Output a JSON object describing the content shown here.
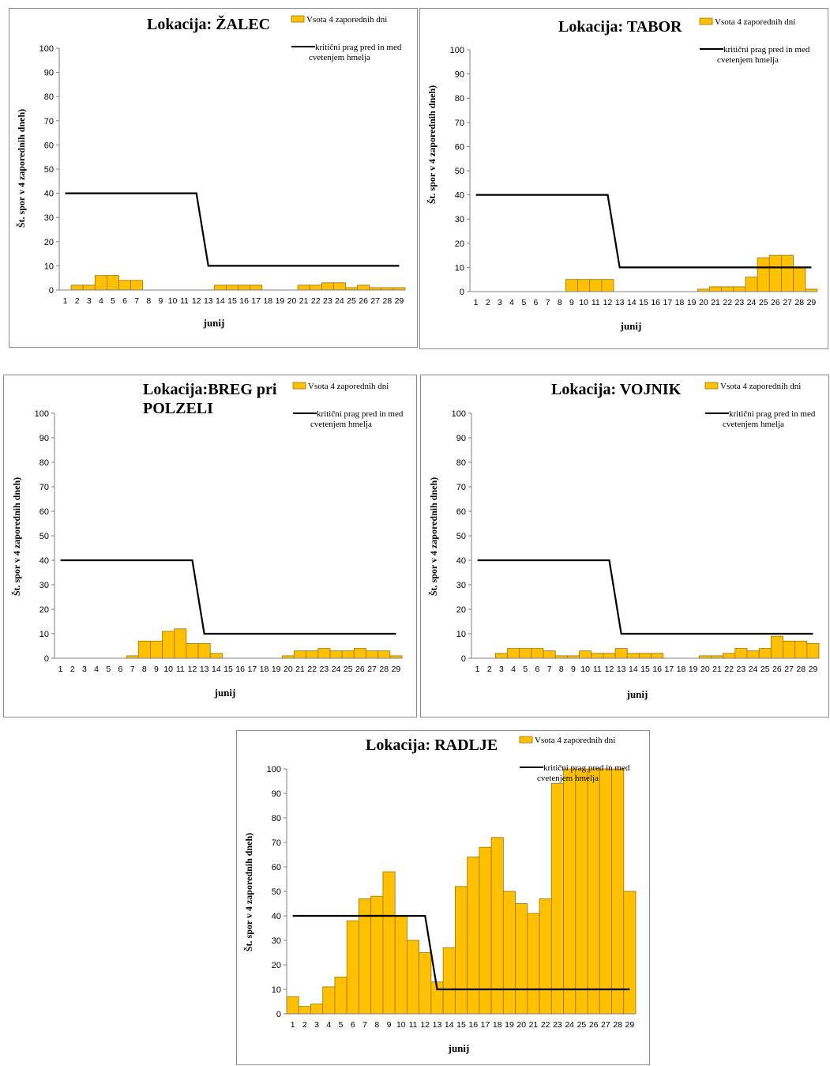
{
  "chart_data": [
    {
      "id": "zalec",
      "type": "bar",
      "title": "Lokacija: ŽALEC",
      "title_lines": [
        "Lokacija: ŽALEC"
      ],
      "xlabel": "junij",
      "ylabel": "Št. spor v 4 zaporednih dneh)",
      "ylim": [
        0,
        100
      ],
      "yticks": [
        0,
        10,
        20,
        30,
        40,
        50,
        60,
        70,
        80,
        90,
        100
      ],
      "categories": [
        "1",
        "2",
        "3",
        "4",
        "5",
        "6",
        "7",
        "8",
        "9",
        "10",
        "11",
        "12",
        "13",
        "14",
        "15",
        "16",
        "17",
        "18",
        "19",
        "20",
        "21",
        "22",
        "23",
        "24",
        "25",
        "26",
        "27",
        "28",
        "29"
      ],
      "legend": {
        "bar": "Vsota 4 zaporednih dni",
        "line": [
          "kritični prag pred in med",
          "cvetenjem  hmelja"
        ]
      },
      "series": [
        {
          "name": "Vsota 4 zaporednih dni",
          "kind": "bar",
          "color": "#FFC000",
          "values": [
            0,
            2,
            2,
            6,
            6,
            4,
            4,
            0,
            0,
            0,
            0,
            0,
            0,
            2,
            2,
            2,
            2,
            0,
            0,
            0,
            2,
            2,
            3,
            3,
            1,
            2,
            1,
            1,
            1
          ]
        },
        {
          "name": "kritični prag pred in med cvetenjem  hmelja",
          "kind": "line",
          "color": "#000000",
          "values": [
            40,
            40,
            40,
            40,
            40,
            40,
            40,
            40,
            40,
            40,
            40,
            40,
            10,
            10,
            10,
            10,
            10,
            10,
            10,
            10,
            10,
            10,
            10,
            10,
            10,
            10,
            10,
            10,
            10
          ]
        }
      ]
    },
    {
      "id": "tabor",
      "type": "bar",
      "title": "Lokacija: TABOR",
      "title_lines": [
        "Lokacija: TABOR"
      ],
      "xlabel": "junij",
      "ylabel": "Št. spor v 4 zaporednih dneh)",
      "ylim": [
        0,
        100
      ],
      "yticks": [
        0,
        10,
        20,
        30,
        40,
        50,
        60,
        70,
        80,
        90,
        100
      ],
      "categories": [
        "1",
        "2",
        "3",
        "4",
        "5",
        "6",
        "7",
        "8",
        "9",
        "10",
        "11",
        "12",
        "13",
        "14",
        "15",
        "16",
        "17",
        "18",
        "19",
        "20",
        "21",
        "22",
        "23",
        "24",
        "25",
        "26",
        "27",
        "28",
        "29"
      ],
      "legend": {
        "bar": "Vsota 4 zaporednih dni",
        "line": [
          "kritični prag pred in med",
          "cvetenjem  hmelja"
        ]
      },
      "series": [
        {
          "name": "Vsota 4 zaporednih dni",
          "kind": "bar",
          "color": "#FFC000",
          "values": [
            0,
            0,
            0,
            0,
            0,
            0,
            0,
            0,
            5,
            5,
            5,
            5,
            0,
            0,
            0,
            0,
            0,
            0,
            0,
            1,
            2,
            2,
            2,
            6,
            14,
            15,
            15,
            10,
            1
          ]
        },
        {
          "name": "kritični prag pred in med cvetenjem  hmelja",
          "kind": "line",
          "color": "#000000",
          "values": [
            40,
            40,
            40,
            40,
            40,
            40,
            40,
            40,
            40,
            40,
            40,
            40,
            10,
            10,
            10,
            10,
            10,
            10,
            10,
            10,
            10,
            10,
            10,
            10,
            10,
            10,
            10,
            10,
            10
          ]
        }
      ]
    },
    {
      "id": "breg",
      "type": "bar",
      "title": "Lokacija:BREG pri POLZELI",
      "title_lines": [
        "Lokacija:BREG pri",
        "POLZELI"
      ],
      "xlabel": "junij",
      "ylabel": "Št. spor v 4 zaporednih dneh)",
      "ylim": [
        0,
        100
      ],
      "yticks": [
        0,
        10,
        20,
        30,
        40,
        50,
        60,
        70,
        80,
        90,
        100
      ],
      "categories": [
        "1",
        "2",
        "3",
        "4",
        "5",
        "6",
        "7",
        "8",
        "9",
        "10",
        "11",
        "12",
        "13",
        "14",
        "15",
        "16",
        "17",
        "18",
        "19",
        "20",
        "21",
        "22",
        "23",
        "24",
        "25",
        "26",
        "27",
        "28",
        "29"
      ],
      "legend": {
        "bar": "Vsota 4 zaporednih dni",
        "line": [
          "kritični prag pred in med",
          "cvetenjem  hmelja"
        ]
      },
      "series": [
        {
          "name": "Vsota 4 zaporednih dni",
          "kind": "bar",
          "color": "#FFC000",
          "values": [
            0,
            0,
            0,
            0,
            0,
            0,
            1,
            7,
            7,
            11,
            12,
            6,
            6,
            2,
            0,
            0,
            0,
            0,
            0,
            1,
            3,
            3,
            4,
            3,
            3,
            4,
            3,
            3,
            1
          ]
        },
        {
          "name": "kritični prag pred in med cvetenjem  hmelja",
          "kind": "line",
          "color": "#000000",
          "values": [
            40,
            40,
            40,
            40,
            40,
            40,
            40,
            40,
            40,
            40,
            40,
            40,
            10,
            10,
            10,
            10,
            10,
            10,
            10,
            10,
            10,
            10,
            10,
            10,
            10,
            10,
            10,
            10,
            10
          ]
        }
      ]
    },
    {
      "id": "vojnik",
      "type": "bar",
      "title": "Lokacija: VOJNIK",
      "title_lines": [
        "Lokacija: VOJNIK"
      ],
      "xlabel": "junij",
      "ylabel": "Št. spor v 4 zaporednih dneh)",
      "ylim": [
        0,
        100
      ],
      "yticks": [
        0,
        10,
        20,
        30,
        40,
        50,
        60,
        70,
        80,
        90,
        100
      ],
      "categories": [
        "1",
        "2",
        "3",
        "4",
        "5",
        "6",
        "7",
        "8",
        "9",
        "10",
        "11",
        "12",
        "13",
        "14",
        "15",
        "16",
        "17",
        "18",
        "19",
        "20",
        "21",
        "22",
        "23",
        "24",
        "25",
        "26",
        "27",
        "28",
        "29"
      ],
      "legend": {
        "bar": "Vsota 4 zaporednih dni",
        "line": [
          "kritični prag pred in med",
          "cvetenjem  hmelja"
        ]
      },
      "series": [
        {
          "name": "Vsota 4 zaporednih dni",
          "kind": "bar",
          "color": "#FFC000",
          "values": [
            0,
            0,
            2,
            4,
            4,
            4,
            3,
            1,
            1,
            3,
            2,
            2,
            4,
            2,
            2,
            2,
            0,
            0,
            0,
            1,
            1,
            2,
            4,
            3,
            4,
            9,
            7,
            7,
            6
          ]
        },
        {
          "name": "kritični prag pred in med cvetenjem  hmelja",
          "kind": "line",
          "color": "#000000",
          "values": [
            40,
            40,
            40,
            40,
            40,
            40,
            40,
            40,
            40,
            40,
            40,
            40,
            10,
            10,
            10,
            10,
            10,
            10,
            10,
            10,
            10,
            10,
            10,
            10,
            10,
            10,
            10,
            10,
            10
          ]
        }
      ]
    },
    {
      "id": "radlje",
      "type": "bar",
      "title": "Lokacija: RADLJE",
      "title_lines": [
        "Lokacija: RADLJE"
      ],
      "xlabel": "junij",
      "ylabel": "Št. spor v 4 zaporednih dneh)",
      "ylim": [
        0,
        100
      ],
      "yticks": [
        0,
        10,
        20,
        30,
        40,
        50,
        60,
        70,
        80,
        90,
        100
      ],
      "categories": [
        "1",
        "2",
        "3",
        "4",
        "5",
        "6",
        "7",
        "8",
        "9",
        "10",
        "11",
        "12",
        "13",
        "14",
        "15",
        "16",
        "17",
        "18",
        "19",
        "20",
        "21",
        "22",
        "23",
        "24",
        "25",
        "26",
        "27",
        "28",
        "29"
      ],
      "legend": {
        "bar": "Vsota 4 zaporednih dni",
        "line": [
          "kritični prag pred in med",
          "cvetenjem  hmelja"
        ]
      },
      "series": [
        {
          "name": "Vsota 4 zaporednih dni",
          "kind": "bar",
          "color": "#FFC000",
          "values": [
            7,
            3,
            4,
            11,
            15,
            38,
            47,
            48,
            58,
            40,
            30,
            25,
            13,
            27,
            52,
            64,
            68,
            72,
            50,
            45,
            41,
            47,
            94,
            100,
            100,
            100,
            100,
            100,
            50
          ]
        },
        {
          "name": "kritični prag pred in med cvetenjem  hmelja",
          "kind": "line",
          "color": "#000000",
          "values": [
            40,
            40,
            40,
            40,
            40,
            40,
            40,
            40,
            40,
            40,
            40,
            40,
            10,
            10,
            10,
            10,
            10,
            10,
            10,
            10,
            10,
            10,
            10,
            10,
            10,
            10,
            10,
            10,
            10
          ]
        }
      ]
    }
  ]
}
